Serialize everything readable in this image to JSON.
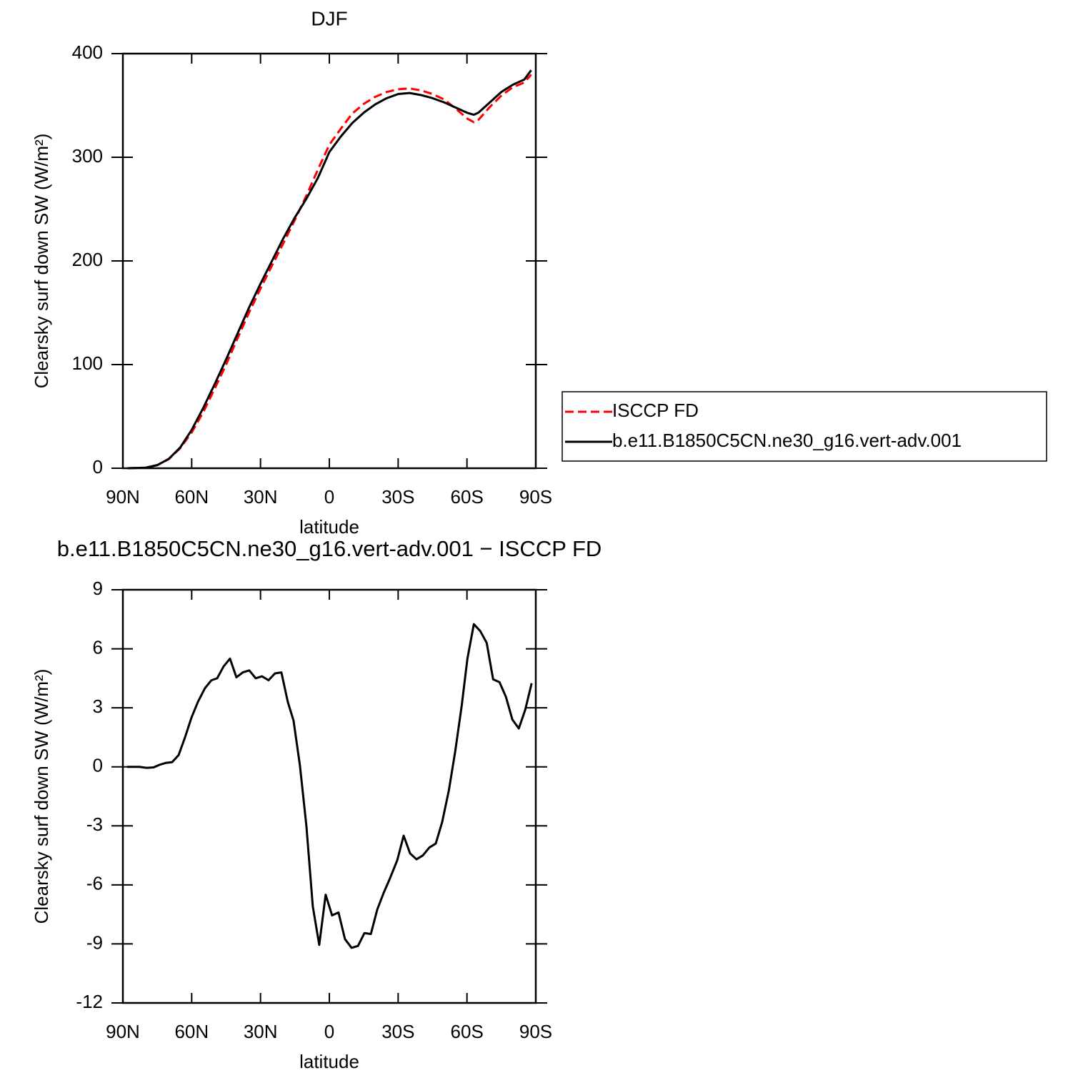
{
  "chart_data": [
    {
      "type": "line",
      "title": "DJF",
      "xlabel": "latitude",
      "ylabel": "Clearsky surf down SW (W/m²)",
      "x": [
        88,
        80,
        75,
        70,
        65,
        60,
        55,
        50,
        45,
        40,
        35,
        30,
        25,
        20,
        15,
        10,
        5,
        0,
        -5,
        -10,
        -15,
        -20,
        -25,
        -30,
        -35,
        -40,
        -45,
        -50,
        -55,
        -60,
        -63,
        -65,
        -70,
        -75,
        -80,
        -85,
        -88
      ],
      "series": [
        {
          "name": "ISCCP FD",
          "color": "#ff0000",
          "linestyle": "dashed",
          "values": [
            0,
            0.5,
            3,
            8.8,
            19.4,
            34.5,
            54,
            76.6,
            99.9,
            125.4,
            150.1,
            173.4,
            195.6,
            217.2,
            239.7,
            263,
            288,
            312,
            327.5,
            342.2,
            351.5,
            358.3,
            363,
            365.6,
            366.4,
            364.5,
            361,
            355.8,
            347.2,
            337.5,
            333.8,
            336.1,
            348.6,
            359.5,
            367.6,
            372.1,
            379.8
          ]
        },
        {
          "name": "b.e11.B1850C5CN.ne30_g16.vert-adv.001",
          "color": "#000000",
          "linestyle": "solid",
          "values": [
            0,
            0.5,
            3,
            9,
            20,
            37,
            58,
            81,
            105,
            130,
            155,
            178,
            200,
            222,
            242,
            260,
            280,
            305,
            320,
            333,
            343,
            351,
            357,
            361,
            362,
            360,
            357,
            353,
            348,
            343,
            341,
            343,
            353,
            363,
            370,
            375,
            384
          ]
        }
      ],
      "xlim": [
        90,
        -90
      ],
      "xticks": [
        {
          "value": 90,
          "label": "90N"
        },
        {
          "value": 60,
          "label": "60N"
        },
        {
          "value": 30,
          "label": "30N"
        },
        0,
        {
          "value": -30,
          "label": "30S"
        },
        {
          "value": -60,
          "label": "60S"
        },
        {
          "value": -90,
          "label": "90S"
        }
      ],
      "ylim": [
        0,
        400
      ],
      "yticks": [
        0,
        100,
        200,
        300,
        400
      ],
      "legend": "right"
    },
    {
      "type": "line",
      "title": "b.e11.B1850C5CN.ne30_g16.vert-adv.001 − ISCCP FD",
      "xlabel": "latitude",
      "ylabel": "Clearsky surf down SW (W/m²)",
      "x": [
        88.1,
        82.8,
        79.7,
        76.6,
        74.1,
        71.3,
        68.5,
        65.7,
        62.9,
        60.1,
        57.3,
        54.2,
        51.4,
        48.9,
        46.1,
        43.3,
        40.5,
        37.7,
        34.9,
        32.1,
        29.3,
        26.5,
        23.7,
        20.9,
        18.1,
        15.6,
        12.8,
        10.0,
        7.2,
        4.4,
        1.6,
        -1.2,
        -4.0,
        -6.8,
        -9.7,
        -12.5,
        -15.3,
        -18.1,
        -20.9,
        -23.7,
        -26.5,
        -29.6,
        -32.4,
        -35.2,
        -38.0,
        -40.8,
        -43.6,
        -46.4,
        -49.2,
        -52.1,
        -54.9,
        -57.7,
        -60.2,
        -63.0,
        -65.8,
        -68.6,
        -71.4,
        -74.2,
        -77.0,
        -79.8,
        -82.6,
        -85.4,
        -88.2
      ],
      "series": [
        {
          "color": "#000000",
          "linestyle": "solid",
          "values": [
            0,
            0,
            -0.05,
            -0.03,
            0.1,
            0.2,
            0.24,
            0.6,
            1.5,
            2.5,
            3.3,
            4.0,
            4.4,
            4.5,
            5.1,
            5.5,
            4.55,
            4.8,
            4.9,
            4.5,
            4.6,
            4.4,
            4.75,
            4.8,
            3.3,
            2.35,
            0.05,
            -3.0,
            -7.1,
            -9.05,
            -6.5,
            -7.55,
            -7.4,
            -8.75,
            -9.2,
            -9.1,
            -8.45,
            -8.5,
            -7.25,
            -6.4,
            -5.65,
            -4.75,
            -3.5,
            -4.4,
            -4.7,
            -4.5,
            -4.1,
            -3.9,
            -2.8,
            -1.2,
            0.8,
            3.1,
            5.5,
            7.25,
            6.9,
            6.3,
            4.45,
            4.3,
            3.55,
            2.4,
            1.95,
            2.9,
            4.25
          ]
        }
      ],
      "xlim": [
        90,
        -90
      ],
      "xticks": [
        {
          "value": 90,
          "label": "90N"
        },
        {
          "value": 60,
          "label": "60N"
        },
        {
          "value": 30,
          "label": "30N"
        },
        0,
        {
          "value": -30,
          "label": "30S"
        },
        {
          "value": -60,
          "label": "60S"
        },
        {
          "value": -90,
          "label": "90S"
        }
      ],
      "ylim": [
        -12,
        9
      ],
      "yticks": [
        -12,
        -9,
        -6,
        -3,
        0,
        3,
        6,
        9
      ]
    }
  ]
}
